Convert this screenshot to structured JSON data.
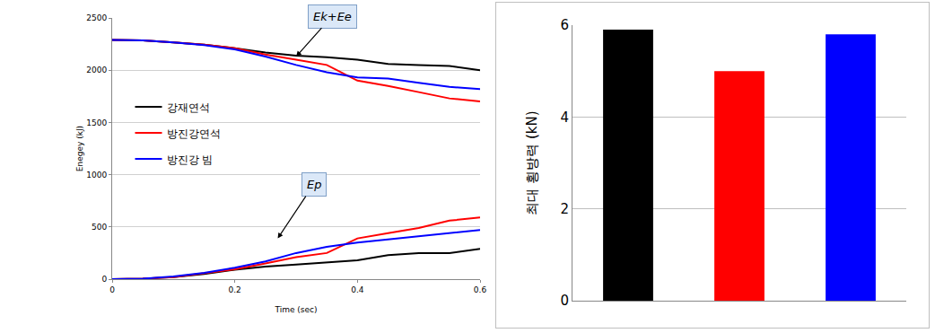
{
  "chart_data": [
    {
      "type": "line",
      "x_label": "Time (sec)",
      "y_label": "Enegey (kJ)",
      "xlim": [
        0,
        0.6
      ],
      "xticks": [
        0,
        0.2,
        0.4,
        0.6
      ],
      "ylim": [
        0,
        2500
      ],
      "yticks": [
        0,
        500,
        1000,
        1500,
        2000,
        2500
      ],
      "grid": true,
      "legend": "left",
      "x": [
        0,
        0.05,
        0.1,
        0.15,
        0.2,
        0.25,
        0.3,
        0.35,
        0.4,
        0.45,
        0.5,
        0.55,
        0.6
      ],
      "series": [
        {
          "name": "강재연석",
          "color": "#000000",
          "values": [
            2290,
            2285,
            2265,
            2245,
            2210,
            2170,
            2140,
            2125,
            2100,
            2060,
            2050,
            2040,
            2000
          ]
        },
        {
          "name": "방진강연석",
          "color": "#ff0000",
          "values": [
            2290,
            2285,
            2265,
            2245,
            2210,
            2150,
            2100,
            2050,
            1900,
            1850,
            1790,
            1730,
            1700
          ]
        },
        {
          "name": "방진강 빔",
          "color": "#0000ff",
          "values": [
            2290,
            2285,
            2265,
            2240,
            2200,
            2130,
            2050,
            1980,
            1930,
            1920,
            1880,
            1840,
            1820
          ]
        },
        {
          "name": "강재연석",
          "color": "#000000",
          "values": [
            0,
            5,
            20,
            50,
            90,
            120,
            140,
            160,
            180,
            230,
            250,
            250,
            290
          ]
        },
        {
          "name": "방진강연석",
          "color": "#ff0000",
          "values": [
            0,
            5,
            20,
            55,
            95,
            150,
            210,
            250,
            390,
            440,
            490,
            560,
            590
          ]
        },
        {
          "name": "방진강 빔",
          "color": "#0000ff",
          "values": [
            0,
            5,
            25,
            60,
            110,
            170,
            250,
            310,
            350,
            380,
            410,
            440,
            470
          ]
        }
      ],
      "annotations": [
        {
          "text": "Ek+Ee",
          "x": 0.3,
          "y": 2130
        },
        {
          "text": "Ep",
          "x": 0.27,
          "y": 390
        }
      ]
    },
    {
      "type": "bar",
      "y_label": "최대 횡방력 (kN)",
      "categories": [
        null,
        null,
        null
      ],
      "values": [
        5.9,
        5.0,
        5.8
      ],
      "colors": [
        "#000000",
        "#ff0000",
        "#0000ff"
      ],
      "ylim": [
        0,
        6
      ],
      "yticks": [
        0,
        2,
        4,
        6
      ],
      "grid": true,
      "tick_labels": "y"
    }
  ]
}
